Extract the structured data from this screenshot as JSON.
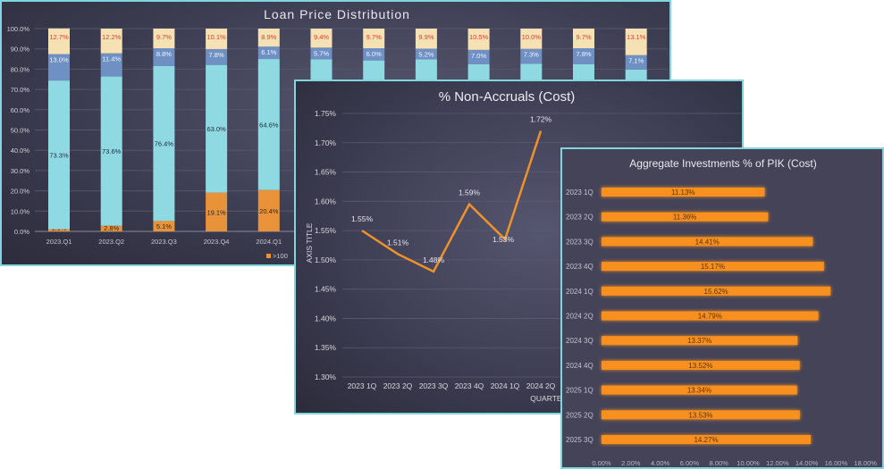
{
  "chart_data": [
    {
      "type": "bar",
      "stacked": true,
      "title": "Loan Price Distribution",
      "categories": [
        "2023.Q1",
        "2023.Q2",
        "2023.Q3",
        "2023.Q4",
        "2024.Q1",
        "",
        "",
        "",
        "",
        "",
        "",
        ""
      ],
      "ylim": [
        0,
        100
      ],
      "yticks": [
        "0.0%",
        "10.0%",
        "20.0%",
        "30.0%",
        "40.0%",
        "50.0%",
        "60.0%",
        "70.0%",
        "80.0%",
        "90.0%",
        "100.0%"
      ],
      "legend": [
        ">100"
      ],
      "legend_position": "bottom",
      "series": [
        {
          "name": ">100",
          "color": "#e8923a",
          "values": [
            1.1,
            2.8,
            5.1,
            19.1,
            20.4,
            null,
            null,
            null,
            null,
            null,
            null,
            null
          ]
        },
        {
          "name": "",
          "color": "#8fd9e2",
          "values": [
            73.3,
            73.6,
            76.4,
            63.0,
            64.6,
            null,
            null,
            null,
            null,
            null,
            null,
            null
          ]
        },
        {
          "name": "",
          "color": "#6f90c2",
          "values": [
            13.0,
            11.4,
            8.8,
            7.8,
            6.1,
            5.7,
            6.0,
            5.2,
            7.0,
            7.3,
            7.8,
            7.1
          ]
        },
        {
          "name": "",
          "color": "#f6e1b4",
          "values": [
            12.7,
            12.2,
            9.7,
            10.1,
            8.9,
            9.4,
            9.7,
            9.9,
            10.5,
            10.0,
            9.7,
            13.1
          ]
        }
      ]
    },
    {
      "type": "line",
      "title": "% Non-Accruals (Cost)",
      "xlabel": "QUARTER",
      "ylabel": "AXIS TITLE",
      "categories": [
        "2023 1Q",
        "2023 2Q",
        "2023 3Q",
        "2023 4Q",
        "2024 1Q",
        "2024 2Q"
      ],
      "values": [
        1.55,
        1.51,
        1.48,
        1.595,
        1.535,
        1.72
      ],
      "labels": [
        "1.55%",
        "1.51%",
        "1.48%",
        "1.59%",
        "1.53%",
        "1.72%"
      ],
      "ylim": [
        1.3,
        1.75
      ],
      "yticks": [
        "1.30%",
        "1.35%",
        "1.40%",
        "1.45%",
        "1.50%",
        "1.55%",
        "1.60%",
        "1.65%",
        "1.70%",
        "1.75%"
      ],
      "color": "#f0922c"
    },
    {
      "type": "bar",
      "orientation": "horizontal",
      "title": "Aggregate Investments % of PIK (Cost)",
      "categories": [
        "2023 1Q",
        "2023 2Q",
        "2023 3Q",
        "2023 4Q",
        "2024 1Q",
        "2024 2Q",
        "2024 3Q",
        "2024 4Q",
        "2025 1Q",
        "2025 2Q",
        "2025 3Q"
      ],
      "values": [
        11.13,
        11.36,
        14.41,
        15.17,
        15.62,
        14.79,
        13.37,
        13.52,
        13.34,
        13.53,
        14.27
      ],
      "labels": [
        "11.13%",
        "11.36%",
        "14.41%",
        "15.17%",
        "15.62%",
        "14.79%",
        "13.37%",
        "13.52%",
        "13.34%",
        "13.53%",
        "14.27%"
      ],
      "xlim": [
        0,
        18
      ],
      "xticks": [
        "0.00%",
        "2.00%",
        "4.00%",
        "6.00%",
        "8.00%",
        "10.00%",
        "12.00%",
        "14.00%",
        "16.00%",
        "18.00%"
      ],
      "color": "#f7901e"
    }
  ]
}
